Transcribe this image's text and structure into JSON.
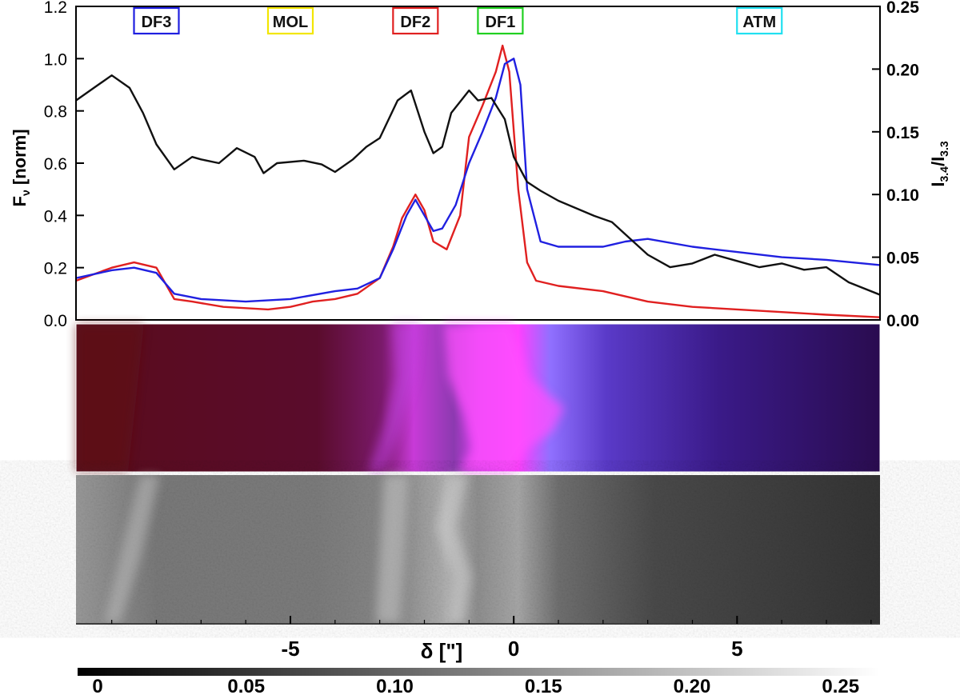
{
  "chart_data": [
    {
      "type": "line",
      "ylabel_left": "F",
      "ylabel_left_sub": "ν",
      "ylabel_left_suffix": " [norm]",
      "ylabel_right": "I",
      "ylabel_right_sub1": "3.4",
      "ylabel_right_mid": "/I",
      "ylabel_right_sub2": "3.3",
      "xlim": [
        -9.8,
        8.2
      ],
      "ylim_left": [
        0,
        1.2
      ],
      "ylim_right": [
        0,
        0.25
      ],
      "yticks_left": [
        "0.0",
        "0.2",
        "0.4",
        "0.6",
        "0.8",
        "1.0",
        "1.2"
      ],
      "yticks_right": [
        "0.00",
        "0.05",
        "0.10",
        "0.15",
        "0.20",
        "0.25"
      ],
      "region_labels": [
        {
          "text": "DF3",
          "x": -8.0,
          "color": "#1f1fe0"
        },
        {
          "text": "MOL",
          "x": -5.0,
          "color": "#f2e600"
        },
        {
          "text": "DF2",
          "x": -2.2,
          "color": "#e02020"
        },
        {
          "text": "DF1",
          "x": -0.3,
          "color": "#20d020"
        },
        {
          "text": "ATM",
          "x": 5.5,
          "color": "#20e0f0"
        }
      ],
      "series": [
        {
          "color": "#e02020",
          "axis": "left",
          "x": [
            -9.8,
            -9.0,
            -8.5,
            -8.0,
            -7.6,
            -7.2,
            -6.5,
            -5.5,
            -5.0,
            -4.5,
            -4.0,
            -3.5,
            -3.0,
            -2.7,
            -2.5,
            -2.2,
            -2.0,
            -1.8,
            -1.5,
            -1.2,
            -1.0,
            -0.7,
            -0.4,
            -0.25,
            -0.1,
            0.1,
            0.3,
            0.5,
            1.0,
            2.0,
            3.0,
            4.0,
            5.0,
            6.0,
            7.0,
            8.2
          ],
          "values": [
            0.15,
            0.2,
            0.22,
            0.2,
            0.08,
            0.07,
            0.05,
            0.04,
            0.05,
            0.07,
            0.08,
            0.1,
            0.16,
            0.28,
            0.39,
            0.48,
            0.42,
            0.3,
            0.27,
            0.4,
            0.7,
            0.82,
            0.95,
            1.05,
            0.95,
            0.5,
            0.22,
            0.15,
            0.13,
            0.11,
            0.07,
            0.05,
            0.04,
            0.03,
            0.02,
            0.01
          ]
        },
        {
          "color": "#2020e0",
          "axis": "left",
          "x": [
            -9.8,
            -9.0,
            -8.5,
            -8.0,
            -7.6,
            -7.0,
            -6.0,
            -5.0,
            -4.0,
            -3.5,
            -3.0,
            -2.7,
            -2.4,
            -2.2,
            -2.0,
            -1.8,
            -1.6,
            -1.3,
            -1.0,
            -0.7,
            -0.4,
            -0.2,
            0.0,
            0.15,
            0.3,
            0.6,
            1.0,
            2.0,
            2.5,
            3.0,
            4.0,
            5.0,
            6.0,
            7.0,
            8.2
          ],
          "values": [
            0.16,
            0.19,
            0.2,
            0.18,
            0.1,
            0.08,
            0.07,
            0.08,
            0.11,
            0.12,
            0.16,
            0.27,
            0.4,
            0.46,
            0.4,
            0.34,
            0.35,
            0.44,
            0.6,
            0.72,
            0.85,
            0.98,
            1.0,
            0.9,
            0.5,
            0.3,
            0.28,
            0.28,
            0.3,
            0.31,
            0.28,
            0.26,
            0.24,
            0.23,
            0.21
          ]
        },
        {
          "color": "#111111",
          "axis": "right",
          "x": [
            -9.8,
            -9.4,
            -9.0,
            -8.6,
            -8.3,
            -8.0,
            -7.6,
            -7.2,
            -7.0,
            -6.6,
            -6.2,
            -5.8,
            -5.6,
            -5.3,
            -4.7,
            -4.3,
            -4.0,
            -3.6,
            -3.3,
            -3.0,
            -2.6,
            -2.3,
            -2.0,
            -1.8,
            -1.6,
            -1.4,
            -1.0,
            -0.8,
            -0.5,
            -0.2,
            0.0,
            0.3,
            0.6,
            1.0,
            1.8,
            2.2,
            2.6,
            3.0,
            3.5,
            4.0,
            4.5,
            5.0,
            5.5,
            6.0,
            6.5,
            7.0,
            7.5,
            8.2
          ],
          "values": [
            0.175,
            0.185,
            0.195,
            0.185,
            0.165,
            0.14,
            0.12,
            0.13,
            0.128,
            0.125,
            0.137,
            0.13,
            0.117,
            0.125,
            0.127,
            0.124,
            0.118,
            0.128,
            0.138,
            0.145,
            0.175,
            0.183,
            0.15,
            0.133,
            0.138,
            0.165,
            0.183,
            0.175,
            0.177,
            0.16,
            0.13,
            0.11,
            0.103,
            0.095,
            0.083,
            0.078,
            0.065,
            0.052,
            0.042,
            0.045,
            0.052,
            0.047,
            0.042,
            0.045,
            0.04,
            0.042,
            0.03,
            0.02
          ]
        }
      ]
    },
    {
      "type": "heatmap",
      "colormap": "red-magenta-blue composite"
    },
    {
      "type": "heatmap",
      "colormap": "grayscale",
      "xlabel": "δ [\"]",
      "xticks": [
        "-5",
        "0",
        "5"
      ],
      "colorbar_ticks": [
        "0",
        "0.05",
        "0.10",
        "0.15",
        "0.20",
        "0.25"
      ],
      "colorbar_range": [
        0,
        0.27
      ]
    }
  ]
}
